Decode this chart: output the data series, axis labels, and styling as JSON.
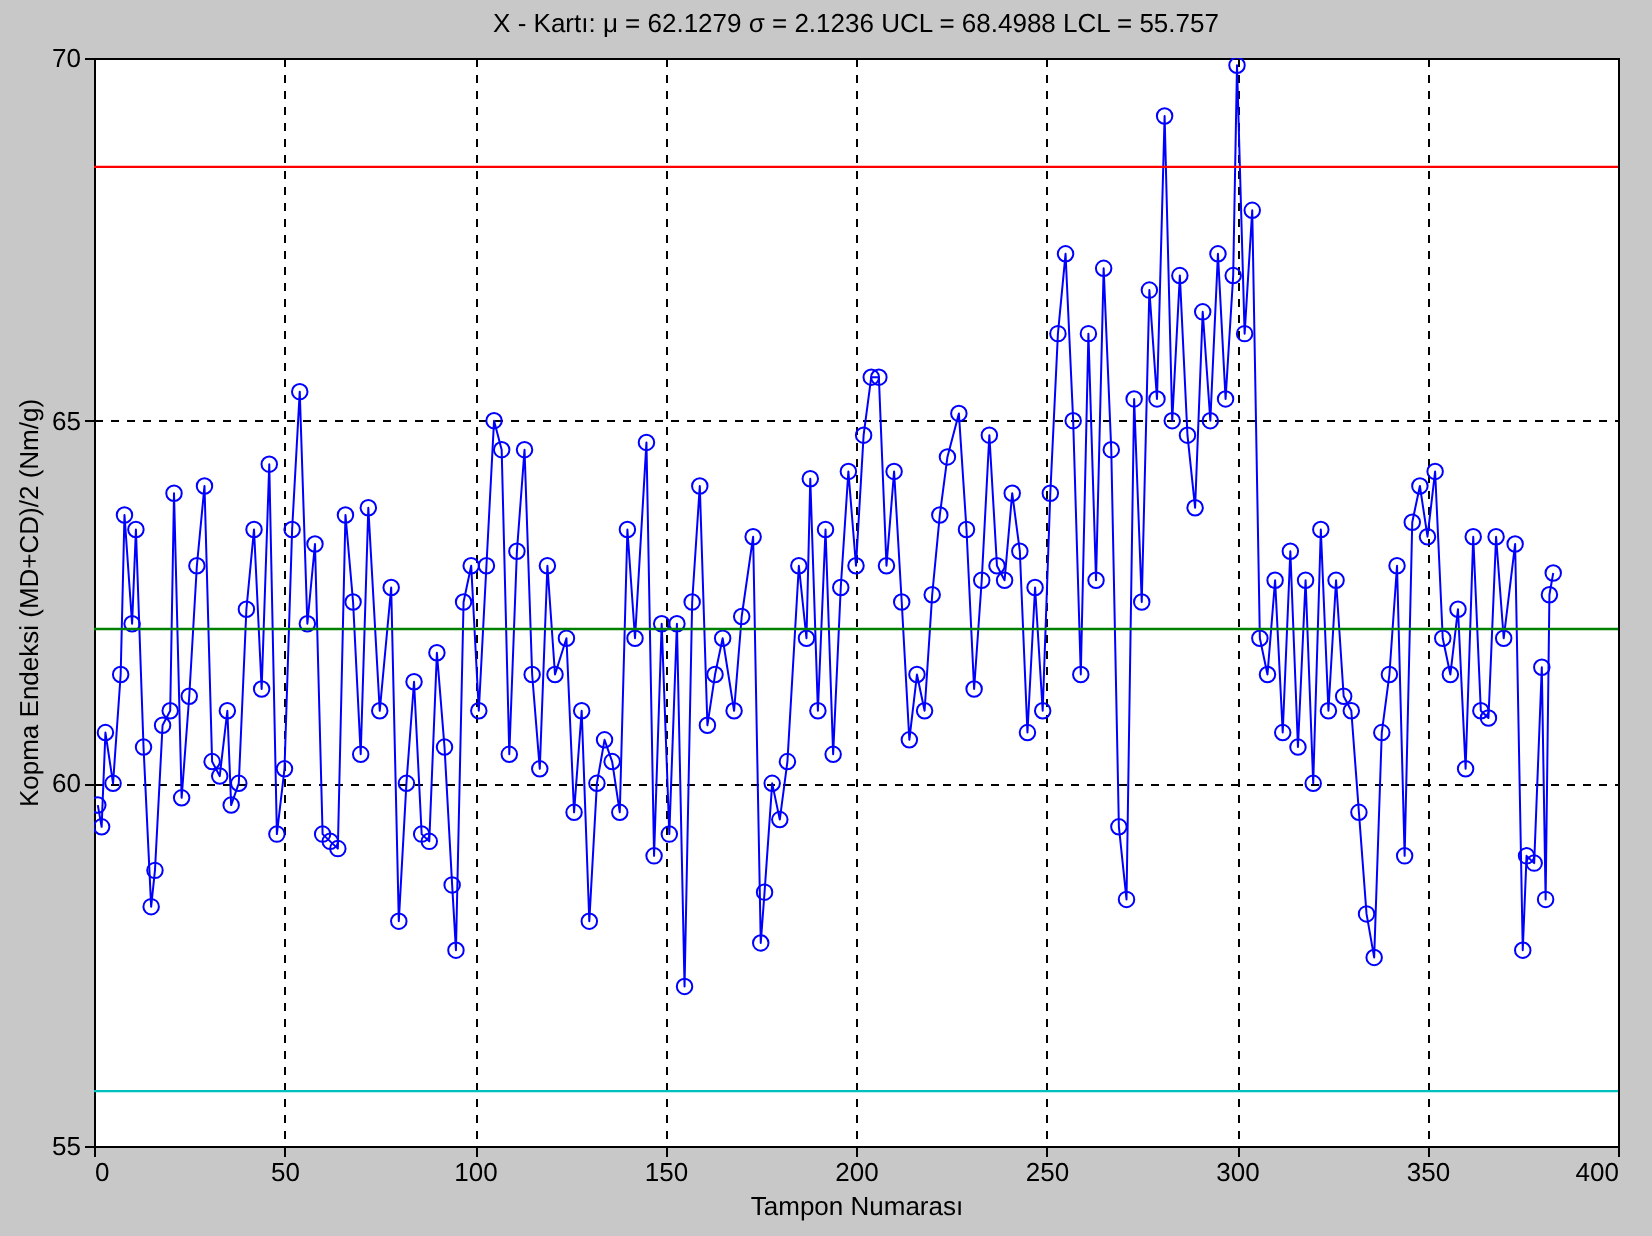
{
  "chart_data": {
    "type": "line",
    "title": "X - Kartı: μ = 62.1279 σ = 2.1236 UCL = 68.4988 LCL = 55.757",
    "xlabel": "Tampon Numarası",
    "ylabel": "Kopma Endeksi (MD+CD)/2 (Nm/g)",
    "xlim": [
      0,
      400
    ],
    "xticks": [
      0,
      50,
      100,
      150,
      200,
      250,
      300,
      350,
      400
    ],
    "ylim": [
      55,
      70
    ],
    "yticks": [
      55,
      60,
      65,
      70
    ],
    "grid": true,
    "marker": "circle",
    "line_style": "solid",
    "series": [
      {
        "color": "#0000ff",
        "x": [
          1,
          2,
          3,
          5,
          7,
          8,
          10,
          11,
          13,
          15,
          16,
          18,
          20,
          21,
          23,
          25,
          27,
          29,
          31,
          33,
          35,
          36,
          38,
          40,
          42,
          44,
          46,
          48,
          50,
          52,
          54,
          56,
          58,
          60,
          62,
          64,
          66,
          68,
          70,
          72,
          75,
          78,
          80,
          82,
          84,
          86,
          88,
          90,
          92,
          94,
          95,
          97,
          99,
          101,
          103,
          105,
          107,
          109,
          111,
          113,
          115,
          117,
          119,
          121,
          124,
          126,
          128,
          130,
          132,
          134,
          136,
          138,
          140,
          142,
          145,
          147,
          149,
          151,
          153,
          155,
          157,
          159,
          161,
          163,
          165,
          168,
          170,
          173,
          175,
          176,
          178,
          180,
          182,
          185,
          187,
          188,
          190,
          192,
          194,
          196,
          198,
          200,
          202,
          204,
          206,
          208,
          210,
          212,
          214,
          216,
          218,
          220,
          222,
          224,
          227,
          229,
          231,
          233,
          235,
          237,
          239,
          241,
          243,
          245,
          247,
          249,
          251,
          253,
          255,
          257,
          259,
          261,
          263,
          265,
          267,
          269,
          271,
          273,
          275,
          277,
          279,
          281,
          283,
          285,
          287,
          289,
          291,
          293,
          295,
          297,
          299,
          300,
          302,
          304,
          306,
          308,
          310,
          312,
          314,
          316,
          318,
          320,
          322,
          324,
          326,
          328,
          330,
          332,
          334,
          336,
          338,
          340,
          342,
          344,
          346,
          348,
          350,
          352,
          354,
          356,
          358,
          360,
          362,
          364,
          366,
          368,
          370,
          373,
          375,
          376,
          378,
          380,
          381,
          382,
          383
        ],
        "values": [
          59.7,
          59.4,
          60.7,
          60,
          61.5,
          63.7,
          62.2,
          63.5,
          60.5,
          58.3,
          58.8,
          60.8,
          61,
          64,
          59.8,
          61.2,
          63,
          64.1,
          60.3,
          60.1,
          61,
          59.7,
          60,
          62.4,
          63.5,
          61.3,
          64.4,
          59.3,
          60.2,
          63.5,
          65.4,
          62.2,
          63.3,
          59.3,
          59.2,
          59.1,
          63.7,
          62.5,
          60.4,
          63.8,
          61,
          62.7,
          58.1,
          60,
          61.4,
          59.3,
          59.2,
          61.8,
          60.5,
          58.6,
          57.7,
          62.5,
          63,
          61,
          63,
          65,
          64.6,
          60.4,
          63.2,
          64.6,
          61.5,
          60.2,
          63,
          61.5,
          62,
          59.6,
          61,
          58.1,
          60,
          60.6,
          60.3,
          59.6,
          63.5,
          62,
          64.7,
          59,
          62.2,
          59.3,
          62.2,
          57.2,
          62.5,
          64.1,
          60.8,
          61.5,
          62,
          61,
          62.3,
          63.4,
          57.8,
          58.5,
          60,
          59.5,
          60.3,
          63,
          62,
          64.2,
          61,
          63.5,
          60.4,
          62.7,
          64.3,
          63,
          64.8,
          65.6,
          65.6,
          63,
          64.3,
          62.5,
          60.6,
          61.5,
          61,
          62.6,
          63.7,
          64.5,
          65.1,
          63.5,
          61.3,
          62.8,
          64.8,
          63,
          62.8,
          64,
          63.2,
          60.7,
          62.7,
          61,
          64,
          66.2,
          67.3,
          65,
          61.5,
          66.2,
          62.8,
          67.1,
          64.6,
          59.4,
          58.4,
          65.3,
          62.5,
          66.8,
          65.3,
          69.2,
          65,
          67,
          64.8,
          63.8,
          66.5,
          65,
          67.3,
          65.3,
          67,
          69.9,
          66.2,
          67.9,
          62,
          61.5,
          62.8,
          60.7,
          63.2,
          60.5,
          62.8,
          60,
          63.5,
          61,
          62.8,
          61.2,
          61,
          59.6,
          58.2,
          57.6,
          60.7,
          61.5,
          63,
          59,
          63.6,
          64.1,
          63.4,
          64.3,
          62,
          61.5,
          62.4,
          60.2,
          63.4,
          61,
          60.9,
          63.4,
          62,
          63.3,
          57.7,
          59,
          58.9,
          61.6,
          58.4,
          62.6,
          62.9
        ]
      }
    ],
    "ref_lines": [
      {
        "axis": "y",
        "value": 68.4988,
        "color": "#ff0000"
      },
      {
        "axis": "y",
        "value": 62.1279,
        "color": "#008000"
      },
      {
        "axis": "y",
        "value": 55.757,
        "color": "#00bfbf"
      }
    ]
  }
}
